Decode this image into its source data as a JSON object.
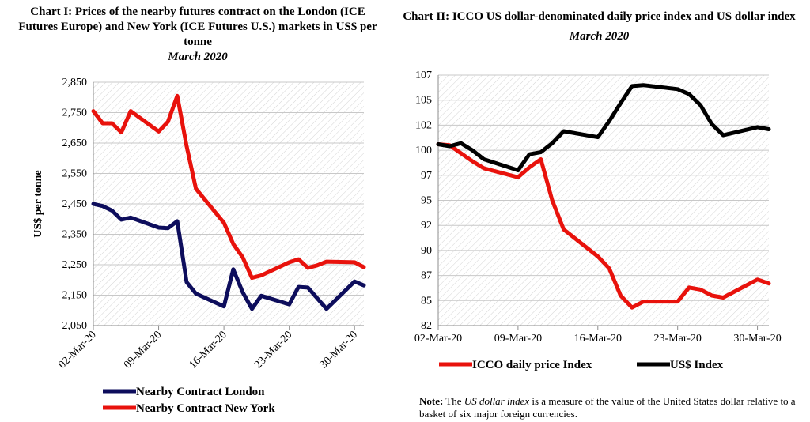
{
  "chart_data": [
    {
      "type": "line",
      "title": "Chart I: Prices of the nearby futures contract on the London (ICE Futures Europe) and New York (ICE Futures U.S.) markets in US$ per tonne",
      "subtitle": "March 2020",
      "ylabel": "US$ per tonne",
      "ylim": [
        2050,
        2850
      ],
      "yticks": [
        "2,850",
        "2,750",
        "2,650",
        "2,550",
        "2,450",
        "2,350",
        "2,250",
        "2,150",
        "2,050"
      ],
      "ytick_values": [
        2850,
        2750,
        2650,
        2550,
        2450,
        2350,
        2250,
        2150,
        2050
      ],
      "xticks": [
        "02-Mar-20",
        "09-Mar-20",
        "16-Mar-20",
        "23-Mar-20",
        "30-Mar-20"
      ],
      "xtick_days": [
        2,
        9,
        16,
        23,
        30
      ],
      "xlim_days": [
        2,
        31
      ],
      "legend_position": "bottom",
      "series": [
        {
          "name": "Nearby Contract London",
          "color": "#0d0d5c",
          "x": [
            2,
            3,
            4,
            5,
            6,
            9,
            10,
            11,
            12,
            13,
            16,
            17,
            18,
            19,
            20,
            23,
            24,
            25,
            26,
            27,
            30,
            31
          ],
          "y": [
            2450,
            2443,
            2428,
            2398,
            2405,
            2372,
            2370,
            2393,
            2193,
            2155,
            2113,
            2235,
            2160,
            2105,
            2148,
            2120,
            2177,
            2175,
            2140,
            2105,
            2195,
            2182
          ]
        },
        {
          "name": "Nearby Contract New York",
          "color": "#e8120c",
          "x": [
            2,
            3,
            4,
            5,
            6,
            9,
            10,
            11,
            12,
            13,
            16,
            17,
            18,
            19,
            20,
            23,
            24,
            25,
            26,
            27,
            30,
            31
          ],
          "y": [
            2755,
            2715,
            2715,
            2685,
            2755,
            2688,
            2720,
            2805,
            2640,
            2500,
            2388,
            2318,
            2275,
            2207,
            2215,
            2258,
            2268,
            2240,
            2248,
            2260,
            2258,
            2242
          ]
        }
      ]
    },
    {
      "type": "line",
      "title": "Chart II: ICCO US dollar-denominated daily price index and US dollar index",
      "subtitle": "March 2020",
      "ylim": [
        82,
        107
      ],
      "yticks": [
        "107",
        "105",
        "102",
        "100",
        "97",
        "95",
        "92",
        "90",
        "87",
        "85",
        "82"
      ],
      "ytick_values": [
        107,
        104.5,
        102,
        99.5,
        97,
        94.5,
        92,
        89.5,
        87,
        84.5,
        82
      ],
      "xticks": [
        "02-Mar-20",
        "09-Mar-20",
        "16-Mar-20",
        "23-Mar-20",
        "30-Mar-20"
      ],
      "xtick_days": [
        2,
        9,
        16,
        23,
        30
      ],
      "xlim_days": [
        2,
        31
      ],
      "legend_position": "bottom",
      "series": [
        {
          "name": "ICCO daily price Index",
          "color": "#e8120c",
          "x": [
            2,
            3,
            4,
            5,
            6,
            9,
            10,
            11,
            12,
            13,
            16,
            17,
            18,
            19,
            20,
            23,
            24,
            25,
            26,
            27,
            30,
            31
          ],
          "y": [
            100.1,
            100.0,
            99.2,
            98.4,
            97.7,
            96.8,
            97.8,
            98.6,
            94.5,
            91.6,
            88.9,
            87.7,
            85.0,
            83.8,
            84.4,
            84.4,
            85.8,
            85.6,
            85.0,
            84.8,
            86.6,
            86.2
          ]
        },
        {
          "name": "US$ Index",
          "color": "#000000",
          "x": [
            2,
            3,
            4,
            5,
            6,
            9,
            10,
            11,
            12,
            13,
            16,
            17,
            18,
            19,
            20,
            23,
            24,
            25,
            26,
            27,
            30,
            31
          ],
          "y": [
            100.1,
            99.9,
            100.2,
            99.5,
            98.6,
            97.5,
            99.1,
            99.3,
            100.2,
            101.4,
            100.8,
            102.4,
            104.2,
            105.9,
            106.0,
            105.6,
            105.1,
            104.0,
            102.1,
            101.0,
            101.8,
            101.6
          ]
        }
      ]
    }
  ],
  "note": {
    "label": "Note:",
    "italic": "US dollar index",
    "text1": "The",
    "text2": "is a measure of the value of the United States dollar relative to a basket of six major foreign currencies."
  }
}
